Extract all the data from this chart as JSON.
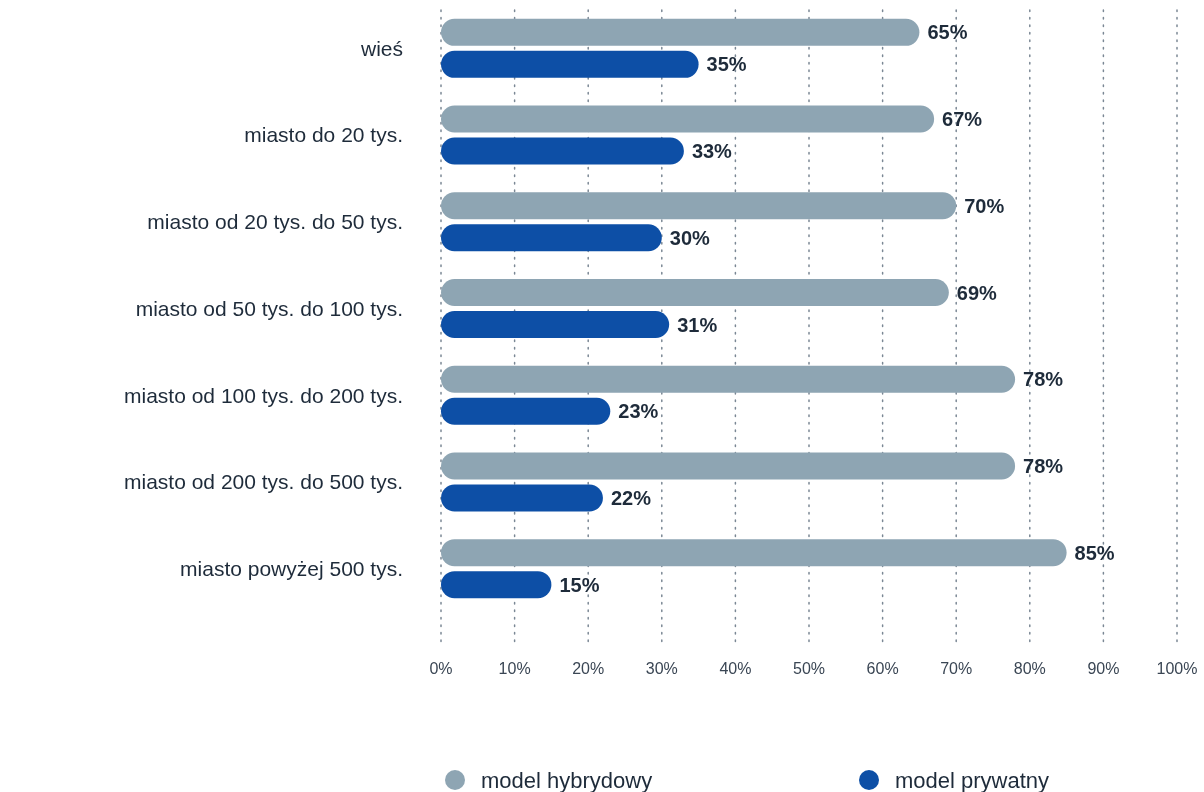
{
  "chart_data": {
    "type": "bar",
    "orientation": "horizontal",
    "categories": [
      "wieś",
      "miasto do 20 tys.",
      "miasto od 20 tys. do 50 tys.",
      "miasto od 50 tys. do 100 tys.",
      "miasto od 100 tys. do 200 tys.",
      "miasto od 200 tys. do 500 tys.",
      "miasto powyżej 500 tys."
    ],
    "series": [
      {
        "name": "model hybrydowy",
        "color": "#8ea5b3",
        "values": [
          65,
          67,
          70,
          69,
          78,
          78,
          85
        ],
        "value_labels": [
          "65%",
          "67%",
          "70%",
          "69%",
          "78%",
          "78%",
          "85%"
        ]
      },
      {
        "name": "model prywatny",
        "color": "#0d4fa6",
        "values": [
          35,
          33,
          30,
          31,
          23,
          22,
          15
        ],
        "value_labels": [
          "35%",
          "33%",
          "30%",
          "31%",
          "23%",
          "22%",
          "15%"
        ]
      }
    ],
    "xlim": [
      0,
      100
    ],
    "xticks": [
      {
        "value": 0,
        "label": "0%"
      },
      {
        "value": 10,
        "label": "10%"
      },
      {
        "value": 20,
        "label": "20%"
      },
      {
        "value": 30,
        "label": "30%"
      },
      {
        "value": 40,
        "label": "40%"
      },
      {
        "value": 50,
        "label": "50%"
      },
      {
        "value": 60,
        "label": "60%"
      },
      {
        "value": 70,
        "label": "70%"
      },
      {
        "value": 80,
        "label": "80%"
      },
      {
        "value": 90,
        "label": "90%"
      },
      {
        "value": 100,
        "label": "100%"
      }
    ],
    "grid": "x",
    "legend": "bottom"
  }
}
